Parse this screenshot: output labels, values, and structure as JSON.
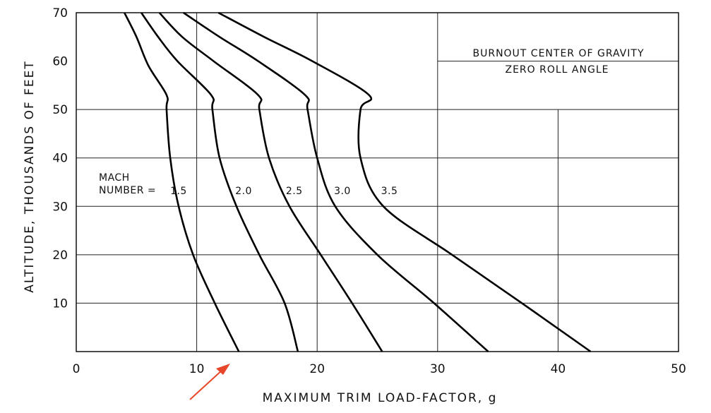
{
  "chart_data": {
    "type": "line",
    "title": "",
    "annotation_lines": [
      "BURNOUT CENTER OF GRAVITY",
      "ZERO ROLL ANGLE"
    ],
    "xlabel": "MAXIMUM TRIM LOAD-FACTOR, g",
    "ylabel": "ALTITUDE, THOUSANDS OF FEET",
    "xlim": [
      0,
      50
    ],
    "ylim": [
      0,
      70
    ],
    "x_ticks": [
      "0",
      "10",
      "20",
      "30",
      "40",
      "50"
    ],
    "y_ticks": [
      "10",
      "20",
      "30",
      "40",
      "50",
      "60",
      "70"
    ],
    "grid": true,
    "legend_prefix": [
      "MACH",
      "NUMBER ="
    ],
    "series": [
      {
        "name": "1.5",
        "points": [
          [
            4.0,
            70
          ],
          [
            5.0,
            65
          ],
          [
            6.0,
            59
          ],
          [
            7.5,
            53
          ],
          [
            7.5,
            50
          ],
          [
            7.8,
            40
          ],
          [
            8.5,
            30
          ],
          [
            9.7,
            20
          ],
          [
            11.5,
            10
          ],
          [
            13.5,
            0
          ]
        ]
      },
      {
        "name": "2.0",
        "points": [
          [
            5.4,
            70
          ],
          [
            6.8,
            65
          ],
          [
            8.4,
            60
          ],
          [
            11.2,
            53
          ],
          [
            11.3,
            50
          ],
          [
            11.9,
            40
          ],
          [
            13.3,
            30
          ],
          [
            15.2,
            20
          ],
          [
            17.3,
            10
          ],
          [
            18.4,
            0
          ]
        ]
      },
      {
        "name": "2.5",
        "points": [
          [
            6.9,
            70
          ],
          [
            8.8,
            65
          ],
          [
            11.4,
            60
          ],
          [
            15.1,
            53
          ],
          [
            15.2,
            50
          ],
          [
            16.0,
            40
          ],
          [
            17.7,
            30
          ],
          [
            20.3,
            20
          ],
          [
            22.9,
            10
          ],
          [
            25.4,
            0
          ]
        ]
      },
      {
        "name": "3.0",
        "points": [
          [
            8.9,
            70
          ],
          [
            11.9,
            65
          ],
          [
            15.1,
            60
          ],
          [
            19.0,
            53
          ],
          [
            19.2,
            50
          ],
          [
            20.0,
            40
          ],
          [
            21.5,
            30
          ],
          [
            25.0,
            20
          ],
          [
            29.7,
            10
          ],
          [
            34.2,
            0
          ]
        ]
      },
      {
        "name": "3.5",
        "points": [
          [
            11.8,
            70
          ],
          [
            15.6,
            65
          ],
          [
            19.6,
            60
          ],
          [
            24.3,
            53
          ],
          [
            23.6,
            50
          ],
          [
            23.6,
            40
          ],
          [
            25.5,
            30
          ],
          [
            31.2,
            20
          ],
          [
            37.0,
            10
          ],
          [
            42.7,
            0
          ]
        ]
      }
    ]
  }
}
